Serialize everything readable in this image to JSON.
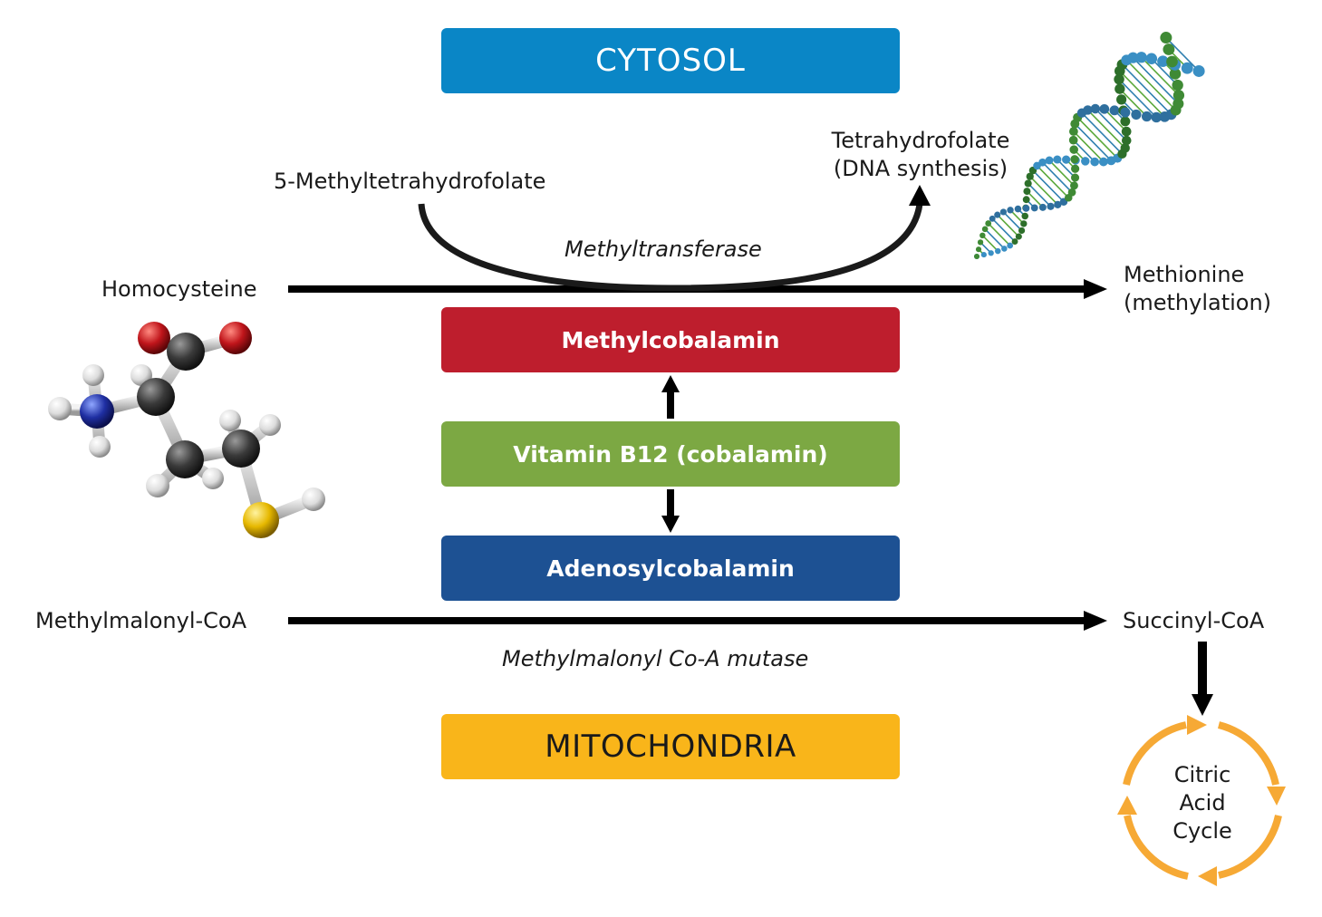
{
  "compartments": {
    "cytosol": "CYTOSOL",
    "mitochondria": "MITOCHONDRIA"
  },
  "cofactors": {
    "methylcobalamin": "Methylcobalamin",
    "vitamin_b12": "Vitamin B12 (cobalamin)",
    "adenosylcobalamin": "Adenosylcobalamin"
  },
  "cytosol_reaction": {
    "substrate": "Homocysteine",
    "product_line1": "Methionine",
    "product_line2": "(methylation)",
    "methyl_donor": "5-Methyltetrahydrofolate",
    "donor_product_line1": "Tetrahydrofolate",
    "donor_product_line2": "(DNA synthesis)",
    "enzyme": "Methyltransferase"
  },
  "mito_reaction": {
    "substrate": "Methylmalonyl-CoA",
    "product": "Succinyl-CoA",
    "enzyme": "Methylmalonyl Co-A mutase"
  },
  "cycle": {
    "line1": "Citric",
    "line2": "Acid",
    "line3": "Cycle"
  },
  "colors": {
    "cytosol": "#0a86c6",
    "methylcobalamin": "#be1e2d",
    "vitamin_b12": "#7ca843",
    "adenosylcobalamin": "#1d5193",
    "mitochondria": "#f9b51a",
    "cycle_ring": "#f6a935"
  },
  "images": {
    "molecule": "homocysteine-ball-and-stick-model",
    "dna": "dna-double-helix"
  }
}
